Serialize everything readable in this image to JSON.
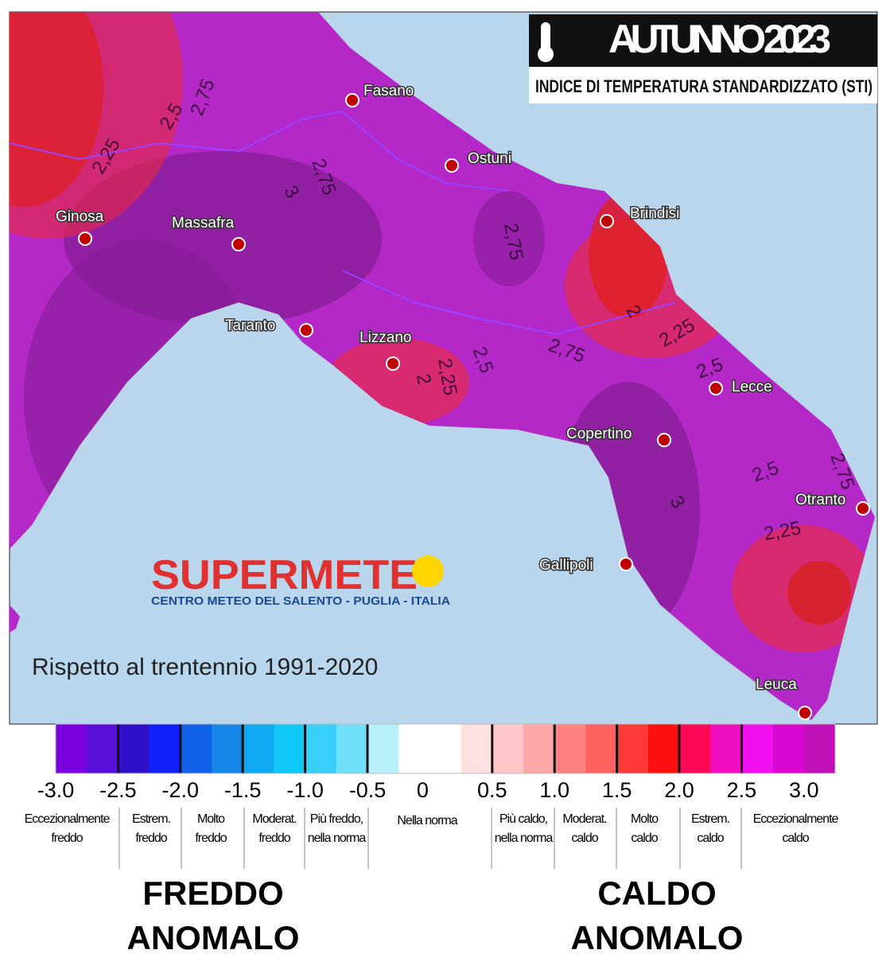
{
  "header": {
    "title": "AUTUNNO 2023",
    "subtitle": "INDICE DI TEMPERATURA STANDARDIZZATO (STI)"
  },
  "cities": [
    "Fasano",
    "Ostuni",
    "Brindisi",
    "Ginosa",
    "Massafra",
    "Taranto",
    "Lizzano",
    "Lecce",
    "Copertino",
    "Otranto",
    "Gallipoli",
    "Leuca"
  ],
  "contour_labels": [
    "2,25",
    "2,5",
    "2,75",
    "3",
    "2,75",
    "2,75",
    "2",
    "2,25",
    "2,5",
    "2,75",
    "2",
    "2,25",
    "2,5",
    "3",
    "2,5",
    "2,75",
    "2,25"
  ],
  "logo": {
    "name": "SUPERMETE",
    "tagline": "CENTRO METEO DEL SALENTO - PUGLIA - ITALIA"
  },
  "note": "Rispetto al trentennio 1991-2020",
  "legend": {
    "colors": [
      "#7a00e0",
      "#5a10d8",
      "#3010c8",
      "#1020f8",
      "#1060e8",
      "#1888e8",
      "#10a8f0",
      "#10c8f8",
      "#38d0f8",
      "#70e0f8",
      "#b8f0fa",
      "#ffffff",
      "#ffffff",
      "#ffe0e0",
      "#ffc8c8",
      "#ffa8a8",
      "#ff8080",
      "#ff6060",
      "#ff3838",
      "#ff1010",
      "#ff0858",
      "#f010c0",
      "#f010f0",
      "#d808d0",
      "#c010b8"
    ],
    "ticks": [
      "-3.0",
      "-2.5",
      "-2.0",
      "-1.5",
      "-1.0",
      "-0.5",
      "0",
      "0.5",
      "1.0",
      "1.5",
      "2.0",
      "2.5",
      "3.0"
    ],
    "classes": [
      [
        "Eccezionalmente",
        "freddo"
      ],
      [
        "Estrem.",
        "freddo"
      ],
      [
        "Molto",
        "freddo"
      ],
      [
        "Moderat.",
        "freddo"
      ],
      [
        "Più freddo,",
        "nella norma"
      ],
      [
        "Nella norma"
      ],
      [
        "Più caldo,",
        "nella norma"
      ],
      [
        "Moderat.",
        "caldo"
      ],
      [
        "Molto",
        "caldo"
      ],
      [
        "Estrem.",
        "caldo"
      ],
      [
        "Eccezionalmente",
        "caldo"
      ]
    ]
  },
  "groups": [
    [
      "FREDDO",
      "ANOMALO"
    ],
    [
      "CALDO",
      "ANOMALO"
    ]
  ]
}
